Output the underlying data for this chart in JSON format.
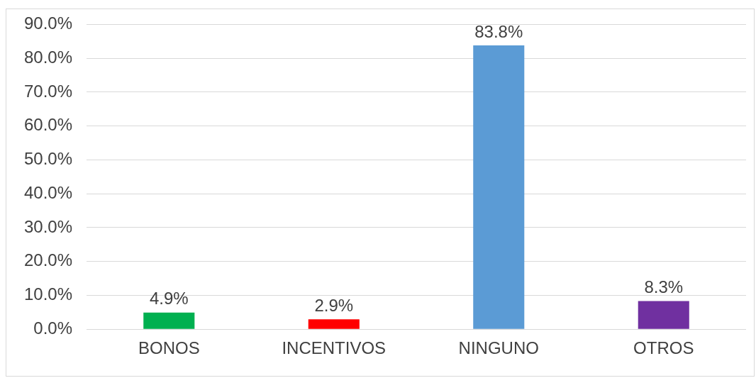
{
  "chart_data": {
    "type": "bar",
    "categories": [
      "BONOS",
      "INCENTIVOS",
      "NINGUNO",
      "OTROS"
    ],
    "values": [
      4.9,
      2.9,
      83.8,
      8.3
    ],
    "colors": [
      "#00b050",
      "#ff0000",
      "#5b9bd5",
      "#7030a0"
    ],
    "value_labels": [
      "4.9%",
      "2.9%",
      "83.8%",
      "8.3%"
    ],
    "ylim": [
      0,
      90
    ],
    "yticks": [
      {
        "value": 0,
        "label": "0.0%"
      },
      {
        "value": 10,
        "label": "10.0%"
      },
      {
        "value": 20,
        "label": "20.0%"
      },
      {
        "value": 30,
        "label": "30.0%"
      },
      {
        "value": 40,
        "label": "40.0%"
      },
      {
        "value": 50,
        "label": "50.0%"
      },
      {
        "value": 60,
        "label": "60.0%"
      },
      {
        "value": 70,
        "label": "70.0%"
      },
      {
        "value": 80,
        "label": "80.0%"
      },
      {
        "value": 90,
        "label": "90.0%"
      }
    ],
    "grid": "y"
  }
}
